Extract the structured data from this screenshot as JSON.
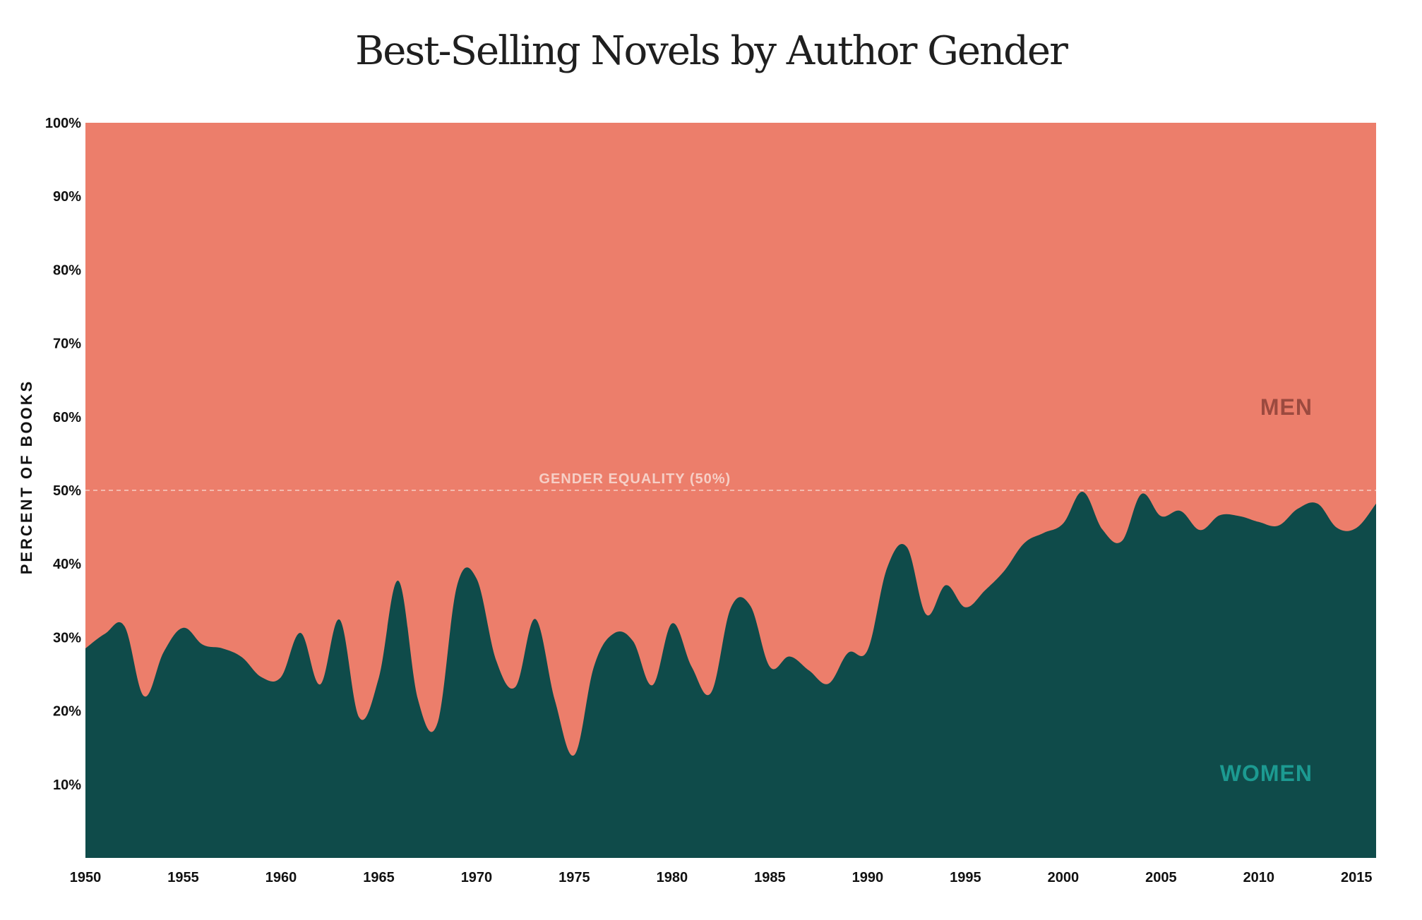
{
  "chart_data": {
    "type": "area",
    "title": "Best-Selling Novels by Author Gender",
    "xlabel": "",
    "ylabel": "PERCENT OF BOOKS",
    "xlim": [
      1950,
      2016
    ],
    "ylim": [
      0,
      100
    ],
    "x_ticks": [
      "1950",
      "1955",
      "1960",
      "1965",
      "1970",
      "1975",
      "1980",
      "1985",
      "1990",
      "1995",
      "2000",
      "2005",
      "2010",
      "2015"
    ],
    "y_ticks": [
      "10%",
      "20%",
      "30%",
      "40%",
      "50%",
      "60%",
      "70%",
      "80%",
      "90%",
      "100%"
    ],
    "stacked_to_100": true,
    "reference_line": {
      "value": 50,
      "label": "GENDER EQUALITY (50%)",
      "style": "dashed"
    },
    "colors": {
      "women": "#0f4b4a",
      "men": "#ec7e6b",
      "women_label": "#1c9a91",
      "men_label": "#9b4a3f",
      "ref_line": "#f6cfc6"
    },
    "series": [
      {
        "name": "WOMEN",
        "x": [
          1950,
          1951,
          1952,
          1953,
          1954,
          1955,
          1956,
          1957,
          1958,
          1959,
          1960,
          1961,
          1962,
          1963,
          1964,
          1965,
          1966,
          1967,
          1968,
          1969,
          1970,
          1971,
          1972,
          1973,
          1974,
          1975,
          1976,
          1977,
          1978,
          1979,
          1980,
          1981,
          1982,
          1983,
          1984,
          1985,
          1986,
          1987,
          1988,
          1989,
          1990,
          1991,
          1992,
          1993,
          1994,
          1995,
          1996,
          1997,
          1998,
          1999,
          2000,
          2001,
          2002,
          2003,
          2004,
          2005,
          2006,
          2007,
          2008,
          2009,
          2010,
          2011,
          2012,
          2013,
          2014,
          2015,
          2016
        ],
        "values": [
          28.5,
          30.5,
          31.5,
          22,
          28,
          31.3,
          29,
          28.5,
          27.3,
          24.6,
          24.6,
          30.6,
          23.6,
          32.4,
          19.1,
          24.5,
          37.7,
          21.6,
          18.3,
          37,
          38,
          26.9,
          23.3,
          32.5,
          21.5,
          14,
          26,
          30.5,
          29.5,
          23.5,
          31.9,
          26,
          22.5,
          34,
          34.3,
          26,
          27.4,
          25.5,
          23.7,
          27.9,
          28.3,
          39.5,
          42.3,
          33.1,
          37.1,
          34.1,
          36.4,
          39.1,
          42.8,
          44.2,
          45.5,
          49.8,
          44.7,
          43.1,
          49.5,
          46.5,
          47.2,
          44.6,
          46.6,
          46.5,
          45.7,
          45.2,
          47.5,
          48.2,
          44.9,
          44.9,
          48.2
        ]
      },
      {
        "name": "MEN",
        "complement_of": "WOMEN"
      }
    ]
  }
}
